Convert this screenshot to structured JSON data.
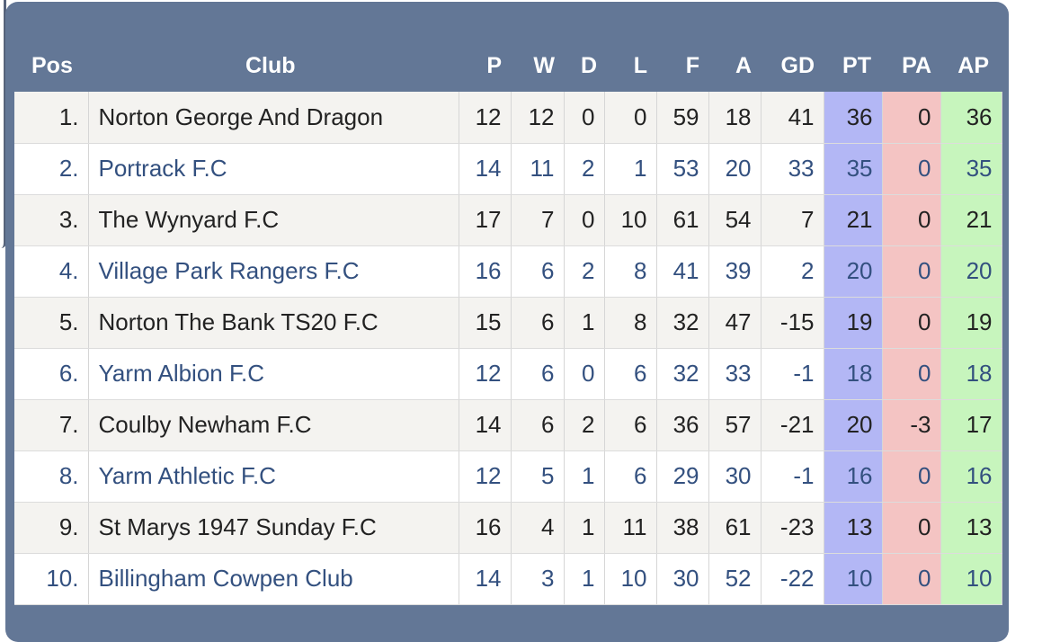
{
  "table": {
    "headers": {
      "pos": "Pos",
      "club": "Club",
      "p": "P",
      "w": "W",
      "d": "D",
      "l": "L",
      "f": "F",
      "a": "A",
      "gd": "GD",
      "pt": "PT",
      "pa": "PA",
      "ap": "AP"
    },
    "rows": [
      {
        "pos": "1.",
        "club": "Norton George And Dragon",
        "p": "12",
        "w": "12",
        "d": "0",
        "l": "0",
        "f": "59",
        "a": "18",
        "gd": "41",
        "pt": "36",
        "pa": "0",
        "ap": "36"
      },
      {
        "pos": "2.",
        "club": "Portrack F.C",
        "p": "14",
        "w": "11",
        "d": "2",
        "l": "1",
        "f": "53",
        "a": "20",
        "gd": "33",
        "pt": "35",
        "pa": "0",
        "ap": "35"
      },
      {
        "pos": "3.",
        "club": "The Wynyard F.C",
        "p": "17",
        "w": "7",
        "d": "0",
        "l": "10",
        "f": "61",
        "a": "54",
        "gd": "7",
        "pt": "21",
        "pa": "0",
        "ap": "21"
      },
      {
        "pos": "4.",
        "club": "Village Park Rangers F.C",
        "p": "16",
        "w": "6",
        "d": "2",
        "l": "8",
        "f": "41",
        "a": "39",
        "gd": "2",
        "pt": "20",
        "pa": "0",
        "ap": "20"
      },
      {
        "pos": "5.",
        "club": "Norton The Bank TS20 F.C",
        "p": "15",
        "w": "6",
        "d": "1",
        "l": "8",
        "f": "32",
        "a": "47",
        "gd": "-15",
        "pt": "19",
        "pa": "0",
        "ap": "19"
      },
      {
        "pos": "6.",
        "club": "Yarm Albion F.C",
        "p": "12",
        "w": "6",
        "d": "0",
        "l": "6",
        "f": "32",
        "a": "33",
        "gd": "-1",
        "pt": "18",
        "pa": "0",
        "ap": "18"
      },
      {
        "pos": "7.",
        "club": "Coulby Newham F.C",
        "p": "14",
        "w": "6",
        "d": "2",
        "l": "6",
        "f": "36",
        "a": "57",
        "gd": "-21",
        "pt": "20",
        "pa": "-3",
        "ap": "17"
      },
      {
        "pos": "8.",
        "club": "Yarm Athletic F.C",
        "p": "12",
        "w": "5",
        "d": "1",
        "l": "6",
        "f": "29",
        "a": "30",
        "gd": "-1",
        "pt": "16",
        "pa": "0",
        "ap": "16"
      },
      {
        "pos": "9.",
        "club": "St Marys 1947 Sunday F.C",
        "p": "16",
        "w": "4",
        "d": "1",
        "l": "11",
        "f": "38",
        "a": "61",
        "gd": "-23",
        "pt": "13",
        "pa": "0",
        "ap": "13"
      },
      {
        "pos": "10.",
        "club": "Billingham Cowpen Club",
        "p": "14",
        "w": "3",
        "d": "1",
        "l": "10",
        "f": "30",
        "a": "52",
        "gd": "-22",
        "pt": "10",
        "pa": "0",
        "ap": "10"
      }
    ]
  },
  "colors": {
    "panel": "#637796",
    "pt_column": "#b3b7f5",
    "pa_column": "#f4c4c3",
    "ap_column": "#c7f5bd",
    "link_text": "#33507f"
  }
}
